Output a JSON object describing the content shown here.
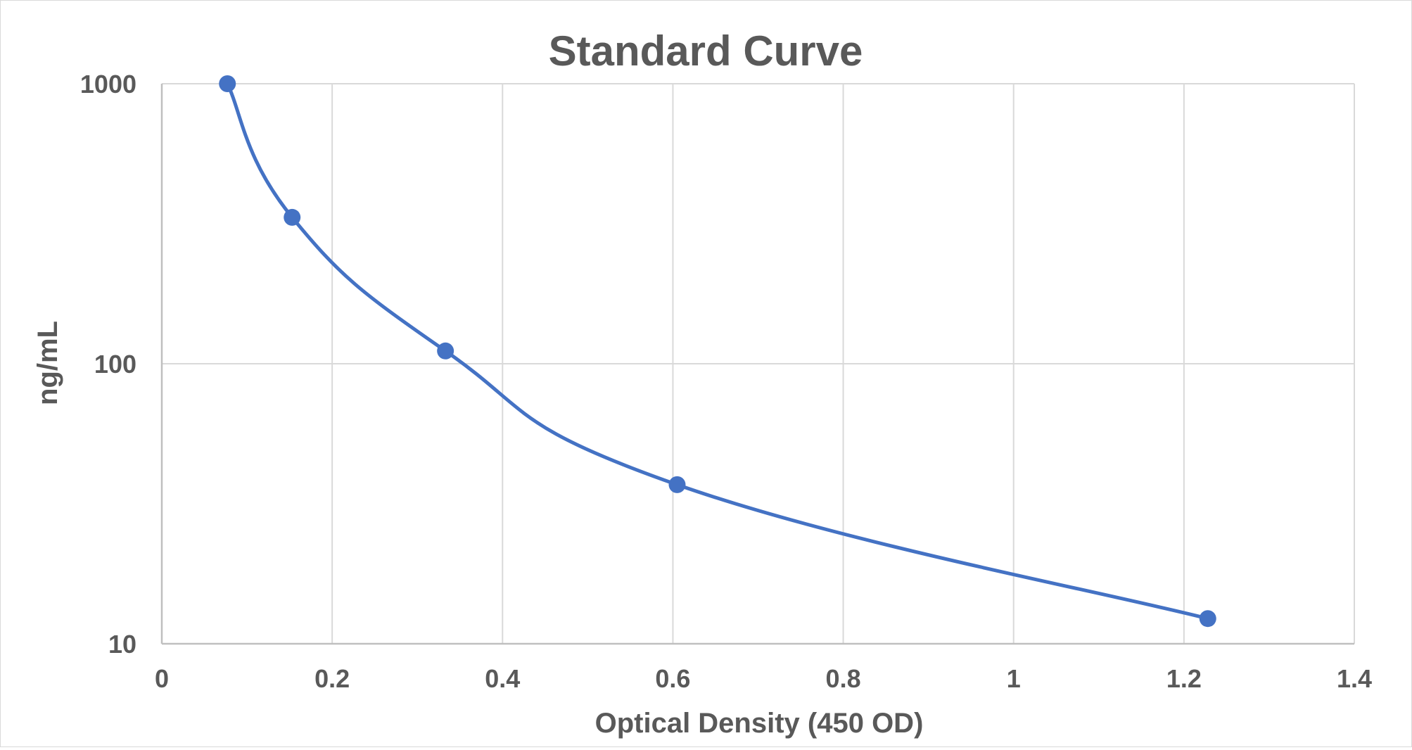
{
  "chart_data": {
    "type": "scatter",
    "title": "Standard Curve",
    "xlabel": "Optical Density (450 OD)",
    "ylabel": "ng/mL",
    "xlim": [
      0,
      1.4
    ],
    "ylim": [
      10,
      1000
    ],
    "y_scale": "log",
    "x_ticks": [
      "0",
      "0.2",
      "0.4",
      "0.6",
      "0.8",
      "1",
      "1.2",
      "1.4"
    ],
    "y_ticks": [
      "10",
      "100",
      "1000"
    ],
    "grid": true,
    "legend": "none",
    "smooth_line": true,
    "series": [
      {
        "x": [
          0.077,
          0.153,
          0.333,
          0.605,
          1.228
        ],
        "y": [
          1000,
          333.3,
          111.1,
          37.0,
          12.3
        ]
      }
    ],
    "colors": {
      "series": "#4472c4",
      "grid": "#d9d9d9",
      "text": "#595959",
      "axis": "#bfbfbf"
    }
  }
}
